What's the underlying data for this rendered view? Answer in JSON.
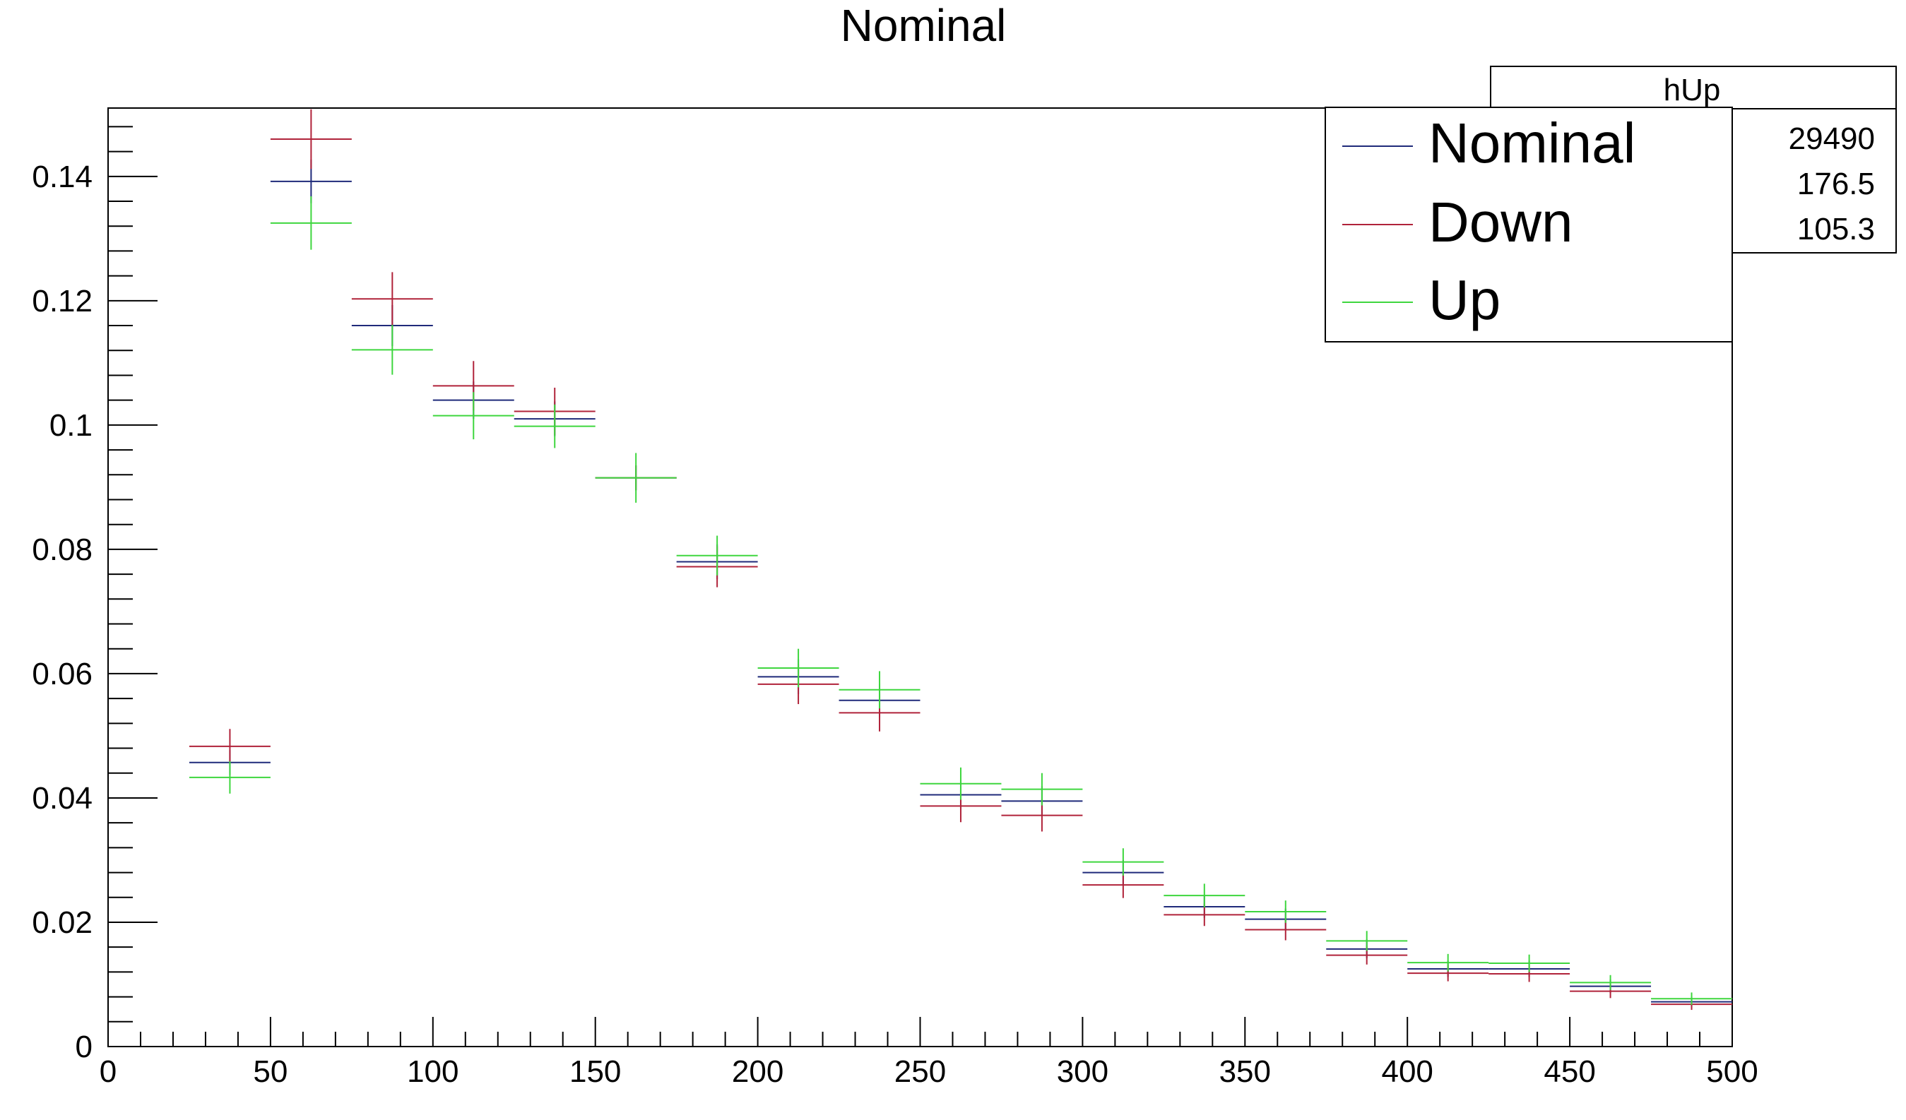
{
  "chart_data": {
    "type": "histogram",
    "title": "Nominal",
    "xlabel": "",
    "ylabel": "",
    "xlim": [
      0,
      500
    ],
    "ylim": [
      0,
      0.151
    ],
    "grid": false,
    "legend_position": "top-right",
    "bin_width": 25,
    "x_ticks": [
      0,
      50,
      100,
      150,
      200,
      250,
      300,
      350,
      400,
      450,
      500
    ],
    "x_tick_labels": [
      "0",
      "50",
      "100",
      "150",
      "200",
      "250",
      "300",
      "350",
      "400",
      "450",
      "500"
    ],
    "y_ticks": [
      0,
      0.02,
      0.04,
      0.06,
      0.08,
      0.1,
      0.12,
      0.14
    ],
    "y_tick_labels": [
      "0",
      "0.02",
      "0.04",
      "0.06",
      "0.08",
      "0.1",
      "0.12",
      "0.14"
    ],
    "bin_centers": [
      37.5,
      62.5,
      87.5,
      112.5,
      137.5,
      162.5,
      187.5,
      212.5,
      237.5,
      262.5,
      287.5,
      312.5,
      337.5,
      362.5,
      387.5,
      412.5,
      437.5,
      462.5,
      487.5
    ],
    "series": [
      {
        "name": "Nominal",
        "color": "#1f2a7a",
        "values": [
          0.0457,
          0.1392,
          0.116,
          0.104,
          0.101,
          0.0915,
          0.078,
          0.0595,
          0.0557,
          0.0405,
          0.0395,
          0.028,
          0.0225,
          0.0205,
          0.0157,
          0.0125,
          0.0125,
          0.0097,
          0.0072
        ],
        "errors": [
          0.002,
          0.0035,
          0.0033,
          0.003,
          0.0028,
          0.002,
          0.0028,
          0.0028,
          0.0027,
          0.0024,
          0.0024,
          0.002,
          0.0018,
          0.0017,
          0.0015,
          0.0013,
          0.0013,
          0.0011,
          0.0009
        ]
      },
      {
        "name": "Down",
        "color": "#b0233a",
        "values": [
          0.0483,
          0.146,
          0.1203,
          0.1063,
          0.1022,
          0.0915,
          0.0772,
          0.0583,
          0.0537,
          0.0387,
          0.0372,
          0.026,
          0.0212,
          0.0188,
          0.0147,
          0.0118,
          0.0117,
          0.0089,
          0.0068
        ],
        "errors": [
          0.0028,
          0.0048,
          0.0043,
          0.004,
          0.0038,
          0.002,
          0.0033,
          0.0032,
          0.003,
          0.0026,
          0.0026,
          0.0021,
          0.0018,
          0.0017,
          0.0015,
          0.0013,
          0.0013,
          0.0011,
          0.0009
        ]
      },
      {
        "name": "Up",
        "color": "#3ed63e",
        "values": [
          0.0433,
          0.1325,
          0.1121,
          0.1015,
          0.0998,
          0.0915,
          0.079,
          0.0609,
          0.0574,
          0.0423,
          0.0414,
          0.0297,
          0.0243,
          0.0217,
          0.017,
          0.0135,
          0.0134,
          0.0103,
          0.0077
        ],
        "errors": [
          0.0026,
          0.0043,
          0.004,
          0.0038,
          0.0035,
          0.004,
          0.0032,
          0.0031,
          0.003,
          0.0026,
          0.0026,
          0.0022,
          0.0019,
          0.0018,
          0.0016,
          0.0014,
          0.0014,
          0.0012,
          0.001
        ]
      }
    ],
    "stats_box": {
      "title": "hUp",
      "values": [
        "29490",
        "176.5",
        "105.3"
      ]
    }
  }
}
